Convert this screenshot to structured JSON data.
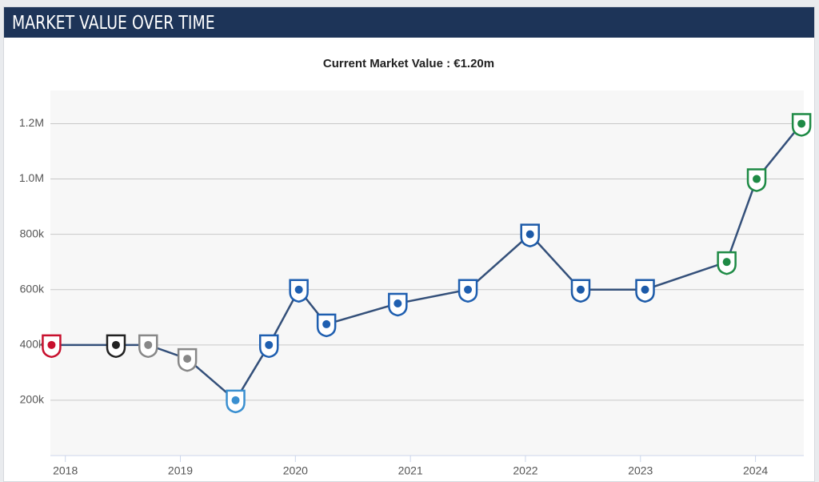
{
  "chart_data": {
    "type": "line",
    "title": "MARKET VALUE OVER TIME",
    "subtitle": "Current Market Value : €1.20m",
    "x": [
      2017.88,
      2018.44,
      2018.72,
      2019.06,
      2019.48,
      2019.77,
      2020.03,
      2020.27,
      2020.89,
      2021.5,
      2022.04,
      2022.48,
      2023.04,
      2023.75,
      2024.01,
      2024.4
    ],
    "series": [
      {
        "name": "Market value",
        "color": "#34507a",
        "values": [
          400000,
          400000,
          400000,
          350000,
          200000,
          400000,
          600000,
          475000,
          550000,
          600000,
          800000,
          600000,
          600000,
          700000,
          1000000,
          1200000
        ]
      }
    ],
    "marker_colors": [
      "#c8102e",
      "#222222",
      "#888888",
      "#888888",
      "#3a8fd0",
      "#1f5fb0",
      "#1f5fb0",
      "#1f5fb0",
      "#1f5fb0",
      "#1f5fb0",
      "#1c5aa8",
      "#1c5aa8",
      "#1c5aa8",
      "#1e8a45",
      "#1e8a45",
      "#1e8a45"
    ],
    "xlim": [
      2017.87,
      2024.42
    ],
    "xticks": [
      2018,
      2019,
      2020,
      2021,
      2022,
      2023,
      2024
    ],
    "ylim": [
      0,
      1320000
    ],
    "yticks": [
      {
        "value": 200000,
        "label": "200k"
      },
      {
        "value": 400000,
        "label": "400k"
      },
      {
        "value": 600000,
        "label": "600k"
      },
      {
        "value": 800000,
        "label": "800k"
      },
      {
        "value": 1000000,
        "label": "1.0M"
      },
      {
        "value": 1200000,
        "label": "1.2M"
      }
    ],
    "grid": true
  }
}
